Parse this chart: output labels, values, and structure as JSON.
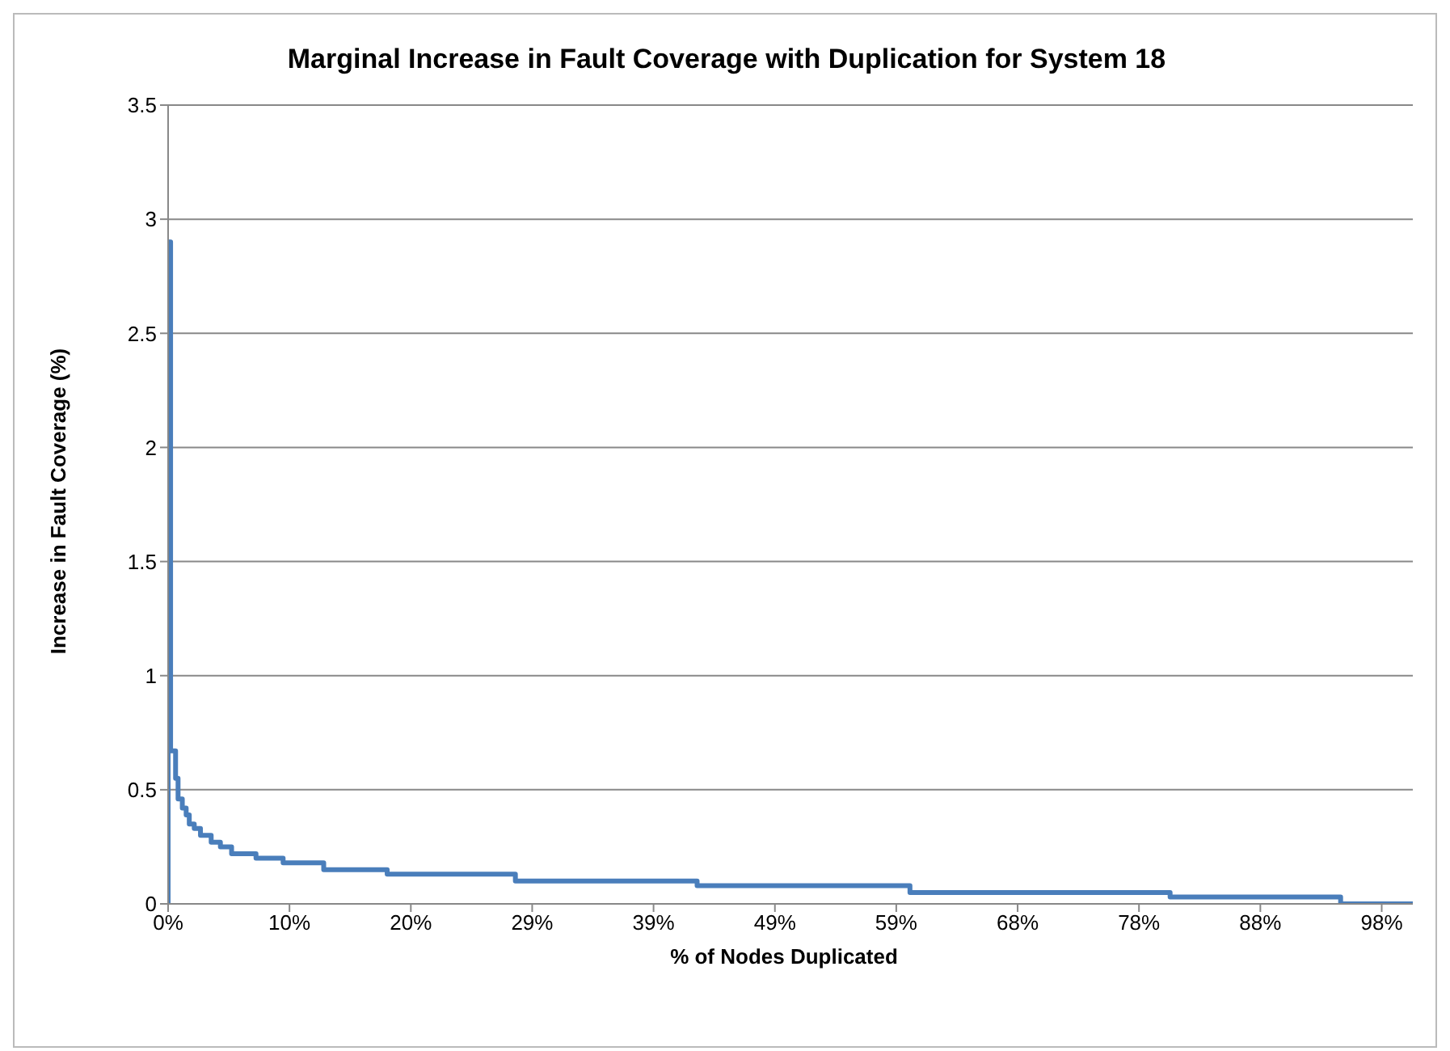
{
  "chart_data": {
    "type": "step",
    "title": "Marginal Increase in Fault Coverage with Duplication for System 18",
    "xlabel": "% of Nodes Duplicated",
    "ylabel": "Increase in Fault Coverage (%)",
    "x": [
      0,
      0,
      0.2,
      0.6,
      0.8,
      1.14,
      1.45,
      1.7,
      2.1,
      2.6,
      3.46,
      4.2,
      5.1,
      7.06,
      9.24,
      12.5,
      17.6,
      27.9,
      42.5,
      59.6,
      80.5,
      94.2,
      100
    ],
    "series": [
      {
        "color": "#4a7ebb",
        "values": [
          0,
          2.9,
          0.67,
          0.55,
          0.46,
          0.42,
          0.39,
          0.35,
          0.33,
          0.3,
          0.27,
          0.25,
          0.22,
          0.2,
          0.18,
          0.15,
          0.13,
          0.1,
          0.08,
          0.05,
          0.03,
          0,
          0
        ]
      }
    ],
    "xlim": [
      0,
      100
    ],
    "xticks": [
      {
        "value": 0,
        "label": "0%"
      },
      {
        "value": 9.75,
        "label": "10%"
      },
      {
        "value": 19.5,
        "label": "20%"
      },
      {
        "value": 29.25,
        "label": "29%"
      },
      {
        "value": 39,
        "label": "39%"
      },
      {
        "value": 48.75,
        "label": "49%"
      },
      {
        "value": 58.5,
        "label": "59%"
      },
      {
        "value": 68.25,
        "label": "68%"
      },
      {
        "value": 78,
        "label": "78%"
      },
      {
        "value": 87.75,
        "label": "88%"
      },
      {
        "value": 97.5,
        "label": "98%"
      }
    ],
    "ylim": [
      0,
      3.5
    ],
    "yticks": [
      0,
      0.5,
      1,
      1.5,
      2,
      2.5,
      3,
      3.5
    ],
    "grid": "y",
    "legend": false,
    "marker": "none",
    "line_style": "solid"
  }
}
